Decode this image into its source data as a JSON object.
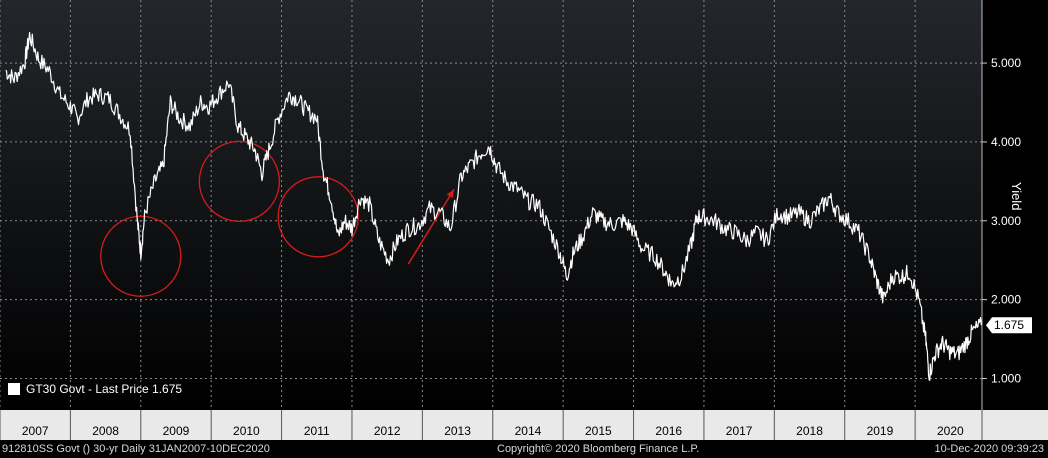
{
  "chart_data": {
    "type": "line",
    "ylabel": "Yield",
    "ylim": [
      0.6,
      5.8
    ],
    "y_ticks": [
      "1.000",
      "2.000",
      "3.000",
      "4.000",
      "5.000"
    ],
    "x_tick_labels": [
      "2007",
      "2008",
      "2009",
      "2010",
      "2011",
      "2012",
      "2013",
      "2014",
      "2015",
      "2016",
      "2017",
      "2018",
      "2019",
      "2020"
    ],
    "last_value_label": "1.675",
    "series": [
      {
        "name": "GT30 Govt - Last Price 1.675",
        "color": "#ffffff",
        "points": [
          [
            2007.08,
            4.9
          ],
          [
            2007.2,
            4.8
          ],
          [
            2007.35,
            5.0
          ],
          [
            2007.42,
            5.35
          ],
          [
            2007.55,
            5.05
          ],
          [
            2007.7,
            4.9
          ],
          [
            2007.85,
            4.6
          ],
          [
            2008.0,
            4.45
          ],
          [
            2008.1,
            4.3
          ],
          [
            2008.25,
            4.55
          ],
          [
            2008.4,
            4.6
          ],
          [
            2008.55,
            4.55
          ],
          [
            2008.7,
            4.35
          ],
          [
            2008.85,
            4.15
          ],
          [
            2008.95,
            3.0
          ],
          [
            2009.0,
            2.6
          ],
          [
            2009.06,
            3.1
          ],
          [
            2009.2,
            3.5
          ],
          [
            2009.32,
            3.7
          ],
          [
            2009.42,
            4.5
          ],
          [
            2009.55,
            4.3
          ],
          [
            2009.7,
            4.2
          ],
          [
            2009.85,
            4.5
          ],
          [
            2009.97,
            4.45
          ],
          [
            2010.1,
            4.6
          ],
          [
            2010.25,
            4.75
          ],
          [
            2010.38,
            4.2
          ],
          [
            2010.5,
            4.05
          ],
          [
            2010.62,
            3.9
          ],
          [
            2010.72,
            3.6
          ],
          [
            2010.82,
            3.9
          ],
          [
            2010.95,
            4.3
          ],
          [
            2011.1,
            4.6
          ],
          [
            2011.22,
            4.55
          ],
          [
            2011.35,
            4.4
          ],
          [
            2011.5,
            4.3
          ],
          [
            2011.6,
            3.6
          ],
          [
            2011.7,
            3.3
          ],
          [
            2011.8,
            2.8
          ],
          [
            2011.9,
            3.0
          ],
          [
            2012.0,
            2.9
          ],
          [
            2012.12,
            3.3
          ],
          [
            2012.25,
            3.2
          ],
          [
            2012.38,
            2.75
          ],
          [
            2012.52,
            2.5
          ],
          [
            2012.65,
            2.75
          ],
          [
            2012.8,
            2.9
          ],
          [
            2012.95,
            2.95
          ],
          [
            2013.1,
            3.15
          ],
          [
            2013.25,
            3.1
          ],
          [
            2013.4,
            2.9
          ],
          [
            2013.55,
            3.55
          ],
          [
            2013.68,
            3.7
          ],
          [
            2013.82,
            3.85
          ],
          [
            2013.95,
            3.95
          ],
          [
            2014.05,
            3.7
          ],
          [
            2014.2,
            3.5
          ],
          [
            2014.35,
            3.4
          ],
          [
            2014.5,
            3.25
          ],
          [
            2014.65,
            3.2
          ],
          [
            2014.8,
            2.9
          ],
          [
            2014.95,
            2.6
          ],
          [
            2015.05,
            2.3
          ],
          [
            2015.15,
            2.6
          ],
          [
            2015.28,
            2.8
          ],
          [
            2015.42,
            3.1
          ],
          [
            2015.55,
            3.0
          ],
          [
            2015.7,
            2.95
          ],
          [
            2015.85,
            3.0
          ],
          [
            2015.98,
            2.9
          ],
          [
            2016.12,
            2.65
          ],
          [
            2016.3,
            2.55
          ],
          [
            2016.45,
            2.35
          ],
          [
            2016.55,
            2.2
          ],
          [
            2016.68,
            2.3
          ],
          [
            2016.82,
            2.7
          ],
          [
            2016.9,
            3.05
          ],
          [
            2017.0,
            3.05
          ],
          [
            2017.15,
            3.0
          ],
          [
            2017.3,
            2.9
          ],
          [
            2017.45,
            2.85
          ],
          [
            2017.6,
            2.75
          ],
          [
            2017.75,
            2.85
          ],
          [
            2017.9,
            2.75
          ],
          [
            2018.05,
            3.1
          ],
          [
            2018.2,
            3.05
          ],
          [
            2018.35,
            3.1
          ],
          [
            2018.5,
            3.0
          ],
          [
            2018.65,
            3.15
          ],
          [
            2018.78,
            3.3
          ],
          [
            2018.9,
            3.1
          ],
          [
            2019.05,
            3.0
          ],
          [
            2019.2,
            2.85
          ],
          [
            2019.35,
            2.55
          ],
          [
            2019.45,
            2.25
          ],
          [
            2019.55,
            2.0
          ],
          [
            2019.68,
            2.3
          ],
          [
            2019.82,
            2.3
          ],
          [
            2019.92,
            2.35
          ],
          [
            2020.05,
            2.0
          ],
          [
            2020.15,
            1.5
          ],
          [
            2020.2,
            1.05
          ],
          [
            2020.28,
            1.3
          ],
          [
            2020.38,
            1.45
          ],
          [
            2020.48,
            1.35
          ],
          [
            2020.6,
            1.3
          ],
          [
            2020.72,
            1.45
          ],
          [
            2020.82,
            1.6
          ],
          [
            2020.94,
            1.675
          ]
        ]
      }
    ],
    "annotations": [
      {
        "type": "circle",
        "center": [
          2009.0,
          2.55
        ]
      },
      {
        "type": "circle",
        "center": [
          2010.4,
          3.5
        ]
      },
      {
        "type": "circle",
        "center": [
          2011.52,
          3.05
        ]
      },
      {
        "type": "arrow",
        "from": [
          2012.8,
          2.45
        ],
        "to": [
          2013.45,
          3.4
        ]
      }
    ]
  },
  "legend": {
    "label": "GT30 Govt - Last Price 1.675"
  },
  "footer": {
    "left": "912810SS Govt () 30-yr  Daily 31JAN2007-10DEC2020",
    "center": "Copyright© 2020 Bloomberg Finance L.P.",
    "right": "10-Dec-2020 09:39:23"
  },
  "colors": {
    "background": "#000000",
    "line": "#ffffff",
    "annotation": "#d81b1b",
    "grid": "#8a8a8a"
  }
}
